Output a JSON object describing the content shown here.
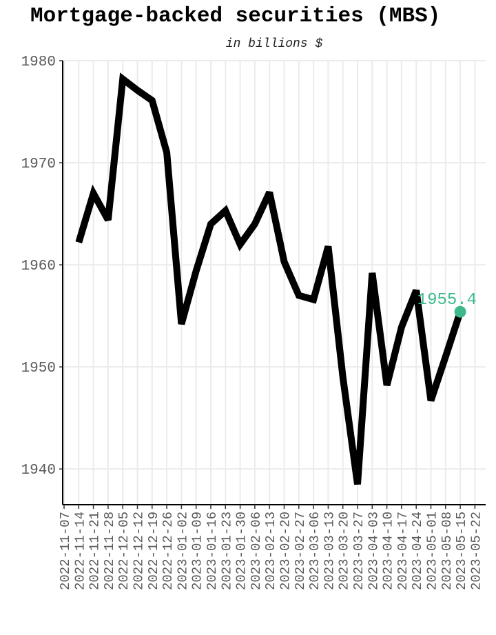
{
  "chart_data": {
    "type": "line",
    "title": "Mortgage-backed securities (MBS)",
    "subtitle": "in billions $",
    "xlabel": "",
    "ylabel": "",
    "x": [
      "2022-11-07",
      "2022-11-14",
      "2022-11-21",
      "2022-11-28",
      "2022-12-05",
      "2022-12-12",
      "2022-12-19",
      "2022-12-26",
      "2023-01-02",
      "2023-01-09",
      "2023-01-16",
      "2023-01-23",
      "2023-01-30",
      "2023-02-06",
      "2023-02-13",
      "2023-02-20",
      "2023-02-27",
      "2023-03-06",
      "2023-03-13",
      "2023-03-20",
      "2023-03-27",
      "2023-04-03",
      "2023-04-10",
      "2023-04-17",
      "2023-04-24",
      "2023-05-01",
      "2023-05-08",
      "2023-05-15",
      "2023-05-22"
    ],
    "series": [
      {
        "values": [
          null,
          1962.2,
          1967.0,
          1964.4,
          1978.2,
          1977.1,
          1976.1,
          1971.0,
          1954.2,
          1959.4,
          1964.0,
          1965.3,
          1962.0,
          1964.0,
          1967.1,
          1960.3,
          1957.0,
          1956.6,
          1961.8,
          1949.0,
          1938.5,
          1959.2,
          1948.2,
          1953.9,
          1957.5,
          1946.7,
          1951.0,
          1955.4,
          null
        ],
        "color": "#000000"
      }
    ],
    "end_label": "1955.4",
    "end_point_color": "#3dba8c",
    "ylim": [
      1936.5,
      1980
    ],
    "yticks": [
      "1940",
      "1950",
      "1960",
      "1970",
      "1980"
    ],
    "grid": true,
    "legend": "none"
  }
}
